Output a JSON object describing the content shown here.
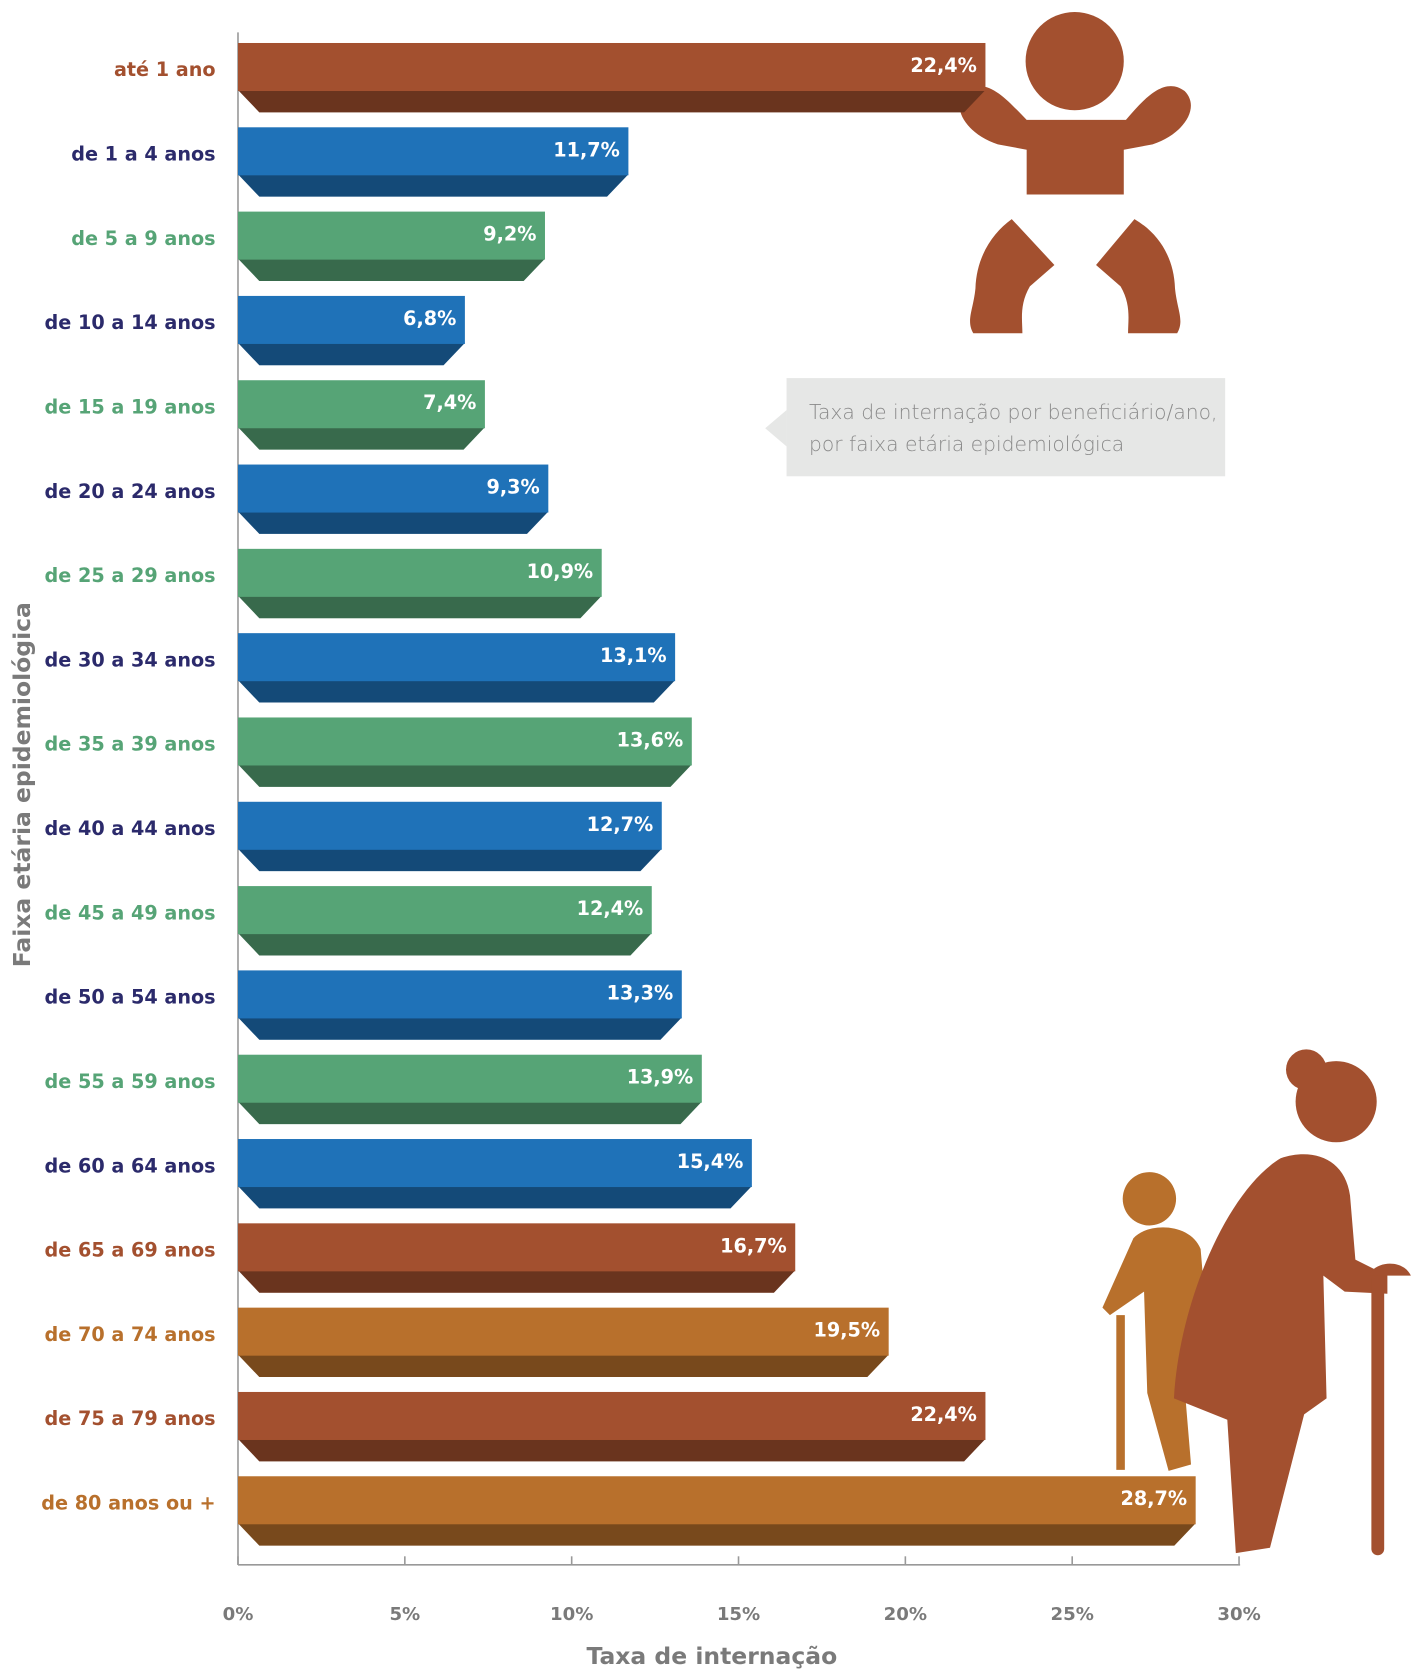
{
  "chart_data": {
    "type": "bar",
    "orientation": "horizontal",
    "categories": [
      "até 1 ano",
      "de 1 a 4 anos",
      "de 5 a 9 anos",
      "de 10 a 14 anos",
      "de 15 a 19 anos",
      "de 20 a 24 anos",
      "de 25 a 29 anos",
      "de 30 a 34 anos",
      "de 35 a 39 anos",
      "de 40 a 44 anos",
      "de 45 a 49 anos",
      "de 50 a 54 anos",
      "de 55 a 59 anos",
      "de 60 a 64 anos",
      "de 65 a 69 anos",
      "de 70 a 74 anos",
      "de 75 a 79 anos",
      "de 80 anos ou +"
    ],
    "values": [
      22.4,
      11.7,
      9.2,
      6.8,
      7.4,
      9.3,
      10.9,
      13.1,
      13.6,
      12.7,
      12.4,
      13.3,
      13.9,
      15.4,
      16.7,
      19.5,
      22.4,
      28.7
    ],
    "value_labels": [
      "22,4%",
      "11,7%",
      "9,2%",
      "6,8%",
      "7,4%",
      "9,3%",
      "10,9%",
      "13,1%",
      "13,6%",
      "12,7%",
      "12,4%",
      "13,3%",
      "13,9%",
      "15,4%",
      "16,7%",
      "19,5%",
      "22,4%",
      "28,7%"
    ],
    "colors": [
      "#a3502f",
      "#1f72b8",
      "#56a476",
      "#1f72b8",
      "#56a476",
      "#1f72b8",
      "#56a476",
      "#1f72b8",
      "#56a476",
      "#1f72b8",
      "#56a476",
      "#1f72b8",
      "#56a476",
      "#1f72b8",
      "#a3502f",
      "#b8702c",
      "#a3502f",
      "#b8702c"
    ],
    "label_colors": [
      "#a3502f",
      "#2b2a6b",
      "#56a476",
      "#2b2a6b",
      "#56a476",
      "#2b2a6b",
      "#56a476",
      "#2b2a6b",
      "#56a476",
      "#2b2a6b",
      "#56a476",
      "#2b2a6b",
      "#56a476",
      "#2b2a6b",
      "#a3502f",
      "#b8702c",
      "#a3502f",
      "#b8702c"
    ],
    "xlim": [
      0,
      30
    ],
    "xticks": [
      {
        "value": 0,
        "label": "0%"
      },
      {
        "value": 5,
        "label": "5%"
      },
      {
        "value": 10,
        "label": "10%"
      },
      {
        "value": 15,
        "label": "15%"
      },
      {
        "value": 20,
        "label": "20%"
      },
      {
        "value": 25,
        "label": "25%"
      },
      {
        "value": 30,
        "label": "30%"
      }
    ],
    "x_label": "Taxa de internação",
    "y_label": "Faixa etária epidemiológica",
    "annotation": [
      "Taxa de internação por beneficiário/ano,",
      "por faixa etária epidemiológica"
    ],
    "grid": false
  }
}
